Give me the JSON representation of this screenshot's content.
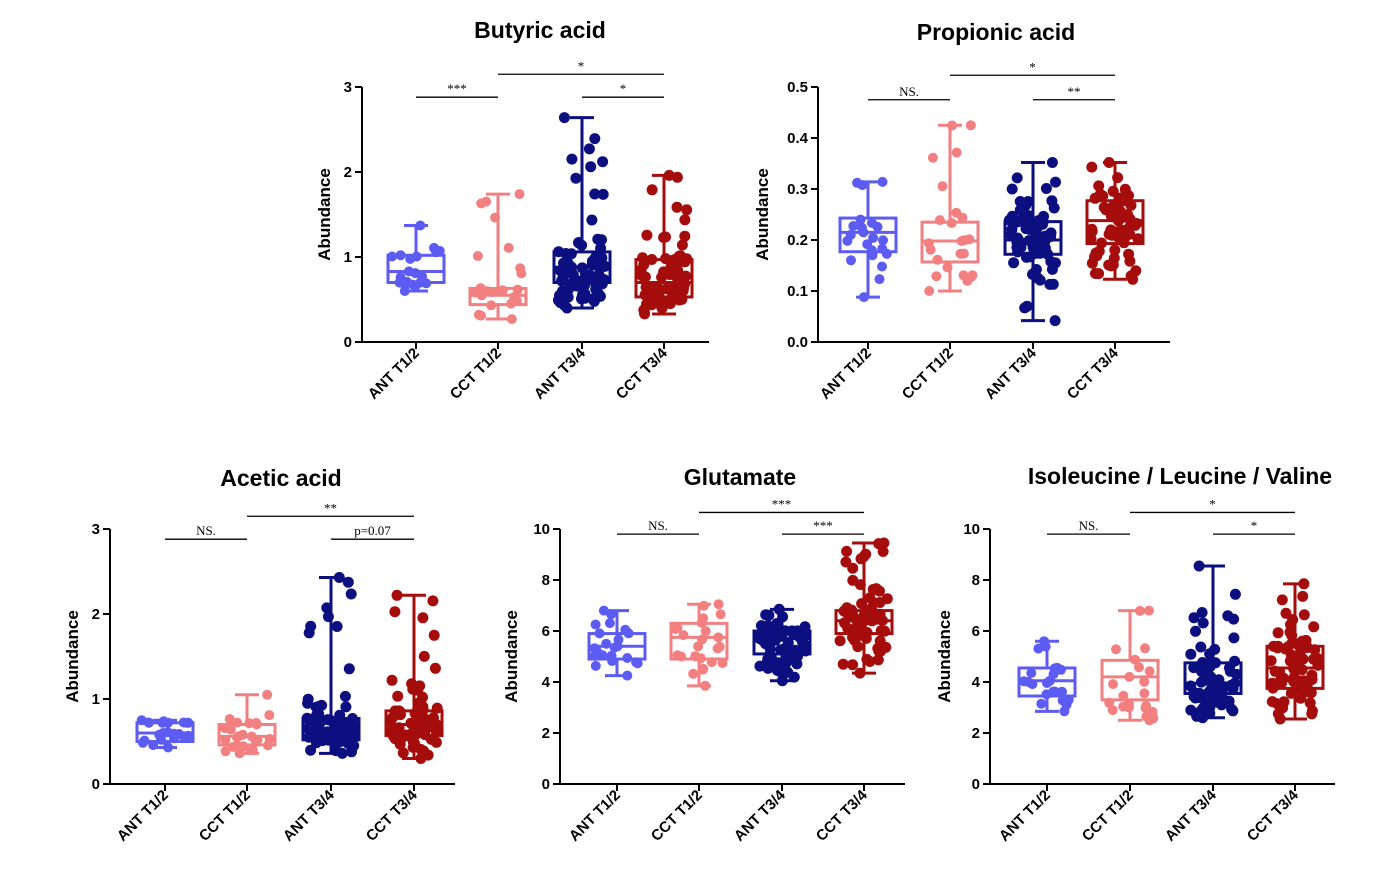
{
  "colors": {
    "ANT T1/2": "#5c5cf2",
    "CCT T1/2": "#f28080",
    "ANT T3/4": "#0b0f7f",
    "CCT T3/4": "#a50d0d"
  },
  "chart_data": [
    {
      "type": "box",
      "title": "Butyric acid",
      "ylabel": "Abundance",
      "xlabel": "",
      "categories": [
        "ANT T1/2",
        "CCT T1/2",
        "ANT T3/4",
        "CCT T3/4"
      ],
      "ylim": [
        0,
        3
      ],
      "yticks": [
        0,
        1,
        2,
        3
      ],
      "y_tick_labels": [
        "0",
        "1",
        "2",
        "3"
      ],
      "series": [
        {
          "name": "ANT T1/2",
          "min": 0.6,
          "q1": 0.7,
          "median": 0.83,
          "q3": 1.02,
          "max": 1.37,
          "n": 22
        },
        {
          "name": "CCT T1/2",
          "min": 0.27,
          "q1": 0.44,
          "median": 0.55,
          "q3": 0.63,
          "max": 1.74,
          "n": 24
        },
        {
          "name": "ANT T3/4",
          "min": 0.4,
          "q1": 0.7,
          "median": 0.88,
          "q3": 1.06,
          "max": 2.64,
          "n": 70
        },
        {
          "name": "CCT T3/4",
          "min": 0.33,
          "q1": 0.53,
          "median": 0.7,
          "q3": 0.97,
          "max": 1.96,
          "n": 70
        }
      ],
      "significance": [
        {
          "from": "ANT T1/2",
          "to": "CCT T1/2",
          "label": "***",
          "y": 2.88
        },
        {
          "from": "CCT T1/2",
          "to": "CCT T3/4",
          "label": "*",
          "y": 3.15
        },
        {
          "from": "ANT T3/4",
          "to": "CCT T3/4",
          "label": "*",
          "y": 2.88
        }
      ]
    },
    {
      "type": "box",
      "title": "Propionic acid",
      "ylabel": "Abundance",
      "xlabel": "",
      "categories": [
        "ANT T1/2",
        "CCT T1/2",
        "ANT T3/4",
        "CCT T3/4"
      ],
      "ylim": [
        0,
        0.5
      ],
      "yticks": [
        0,
        0.1,
        0.2,
        0.3,
        0.4,
        0.5
      ],
      "y_tick_labels": [
        "0.0",
        "0.1",
        "0.2",
        "0.3",
        "0.4",
        "0.5"
      ],
      "series": [
        {
          "name": "ANT T1/2",
          "min": 0.088,
          "q1": 0.177,
          "median": 0.215,
          "q3": 0.243,
          "max": 0.314,
          "n": 22
        },
        {
          "name": "CCT T1/2",
          "min": 0.1,
          "q1": 0.157,
          "median": 0.198,
          "q3": 0.235,
          "max": 0.425,
          "n": 24
        },
        {
          "name": "ANT T3/4",
          "min": 0.042,
          "q1": 0.172,
          "median": 0.2,
          "q3": 0.236,
          "max": 0.352,
          "n": 70
        },
        {
          "name": "CCT T3/4",
          "min": 0.123,
          "q1": 0.193,
          "median": 0.238,
          "q3": 0.277,
          "max": 0.352,
          "n": 70
        }
      ],
      "significance": [
        {
          "from": "ANT T1/2",
          "to": "CCT T1/2",
          "label": "NS.",
          "y": 0.475
        },
        {
          "from": "CCT T1/2",
          "to": "CCT T3/4",
          "label": "*",
          "y": 0.523
        },
        {
          "from": "ANT T3/4",
          "to": "CCT T3/4",
          "label": "**",
          "y": 0.475
        }
      ]
    },
    {
      "type": "box",
      "title": "Acetic acid",
      "ylabel": "Abundance",
      "xlabel": "",
      "categories": [
        "ANT T1/2",
        "CCT T1/2",
        "ANT T3/4",
        "CCT T3/4"
      ],
      "ylim": [
        0,
        3
      ],
      "yticks": [
        0,
        1,
        2,
        3
      ],
      "y_tick_labels": [
        "0",
        "1",
        "2",
        "3"
      ],
      "series": [
        {
          "name": "ANT T1/2",
          "min": 0.43,
          "q1": 0.5,
          "median": 0.6,
          "q3": 0.72,
          "max": 0.75,
          "n": 22
        },
        {
          "name": "CCT T1/2",
          "min": 0.36,
          "q1": 0.46,
          "median": 0.56,
          "q3": 0.7,
          "max": 1.05,
          "n": 24
        },
        {
          "name": "ANT T3/4",
          "min": 0.36,
          "q1": 0.52,
          "median": 0.62,
          "q3": 0.77,
          "max": 2.43,
          "n": 70
        },
        {
          "name": "CCT T3/4",
          "min": 0.3,
          "q1": 0.57,
          "median": 0.7,
          "q3": 0.86,
          "max": 2.22,
          "n": 70
        }
      ],
      "significance": [
        {
          "from": "ANT T1/2",
          "to": "CCT T1/2",
          "label": "NS.",
          "y": 2.88
        },
        {
          "from": "CCT T1/2",
          "to": "CCT T3/4",
          "label": "**",
          "y": 3.15
        },
        {
          "from": "ANT T3/4",
          "to": "CCT T3/4",
          "label": "p=0.07",
          "y": 2.88
        }
      ]
    },
    {
      "type": "box",
      "title": "Glutamate",
      "ylabel": "Abundance",
      "xlabel": "",
      "categories": [
        "ANT T1/2",
        "CCT T1/2",
        "ANT T3/4",
        "CCT T3/4"
      ],
      "ylim": [
        0,
        10
      ],
      "yticks": [
        0,
        2,
        4,
        6,
        8,
        10
      ],
      "y_tick_labels": [
        "0",
        "2",
        "4",
        "6",
        "8",
        "10"
      ],
      "series": [
        {
          "name": "ANT T1/2",
          "min": 4.25,
          "q1": 4.9,
          "median": 5.4,
          "q3": 5.9,
          "max": 6.8,
          "n": 22
        },
        {
          "name": "CCT T1/2",
          "min": 3.85,
          "q1": 4.9,
          "median": 5.75,
          "q3": 6.3,
          "max": 7.05,
          "n": 24
        },
        {
          "name": "ANT T3/4",
          "min": 4.05,
          "q1": 5.1,
          "median": 5.7,
          "q3": 6.0,
          "max": 6.85,
          "n": 70
        },
        {
          "name": "CCT T3/4",
          "min": 4.35,
          "q1": 5.9,
          "median": 6.4,
          "q3": 6.8,
          "max": 9.45,
          "n": 70
        }
      ],
      "significance": [
        {
          "from": "ANT T1/2",
          "to": "CCT T1/2",
          "label": "NS.",
          "y": 9.8
        },
        {
          "from": "CCT T1/2",
          "to": "CCT T3/4",
          "label": "***",
          "y": 10.65
        },
        {
          "from": "ANT T3/4",
          "to": "CCT T3/4",
          "label": "***",
          "y": 9.8
        }
      ]
    },
    {
      "type": "box",
      "title": "Isoleucine / Leucine / Valine",
      "ylabel": "Abundance",
      "xlabel": "",
      "categories": [
        "ANT T1/2",
        "CCT T1/2",
        "ANT T3/4",
        "CCT T3/4"
      ],
      "ylim": [
        0,
        10
      ],
      "yticks": [
        0,
        2,
        4,
        6,
        8,
        10
      ],
      "y_tick_labels": [
        "0",
        "2",
        "4",
        "6",
        "8",
        "10"
      ],
      "series": [
        {
          "name": "ANT T1/2",
          "min": 2.85,
          "q1": 3.45,
          "median": 4.05,
          "q3": 4.55,
          "max": 5.6,
          "n": 22
        },
        {
          "name": "CCT T1/2",
          "min": 2.5,
          "q1": 3.3,
          "median": 4.2,
          "q3": 4.85,
          "max": 6.8,
          "n": 24
        },
        {
          "name": "ANT T3/4",
          "min": 2.6,
          "q1": 3.55,
          "median": 3.95,
          "q3": 4.75,
          "max": 8.55,
          "n": 70
        },
        {
          "name": "CCT T3/4",
          "min": 2.55,
          "q1": 3.75,
          "median": 4.55,
          "q3": 5.4,
          "max": 7.85,
          "n": 70
        }
      ],
      "significance": [
        {
          "from": "ANT T1/2",
          "to": "CCT T1/2",
          "label": "NS.",
          "y": 9.8
        },
        {
          "from": "CCT T1/2",
          "to": "CCT T3/4",
          "label": "*",
          "y": 10.65
        },
        {
          "from": "ANT T3/4",
          "to": "CCT T3/4",
          "label": "*",
          "y": 9.8
        }
      ]
    }
  ]
}
